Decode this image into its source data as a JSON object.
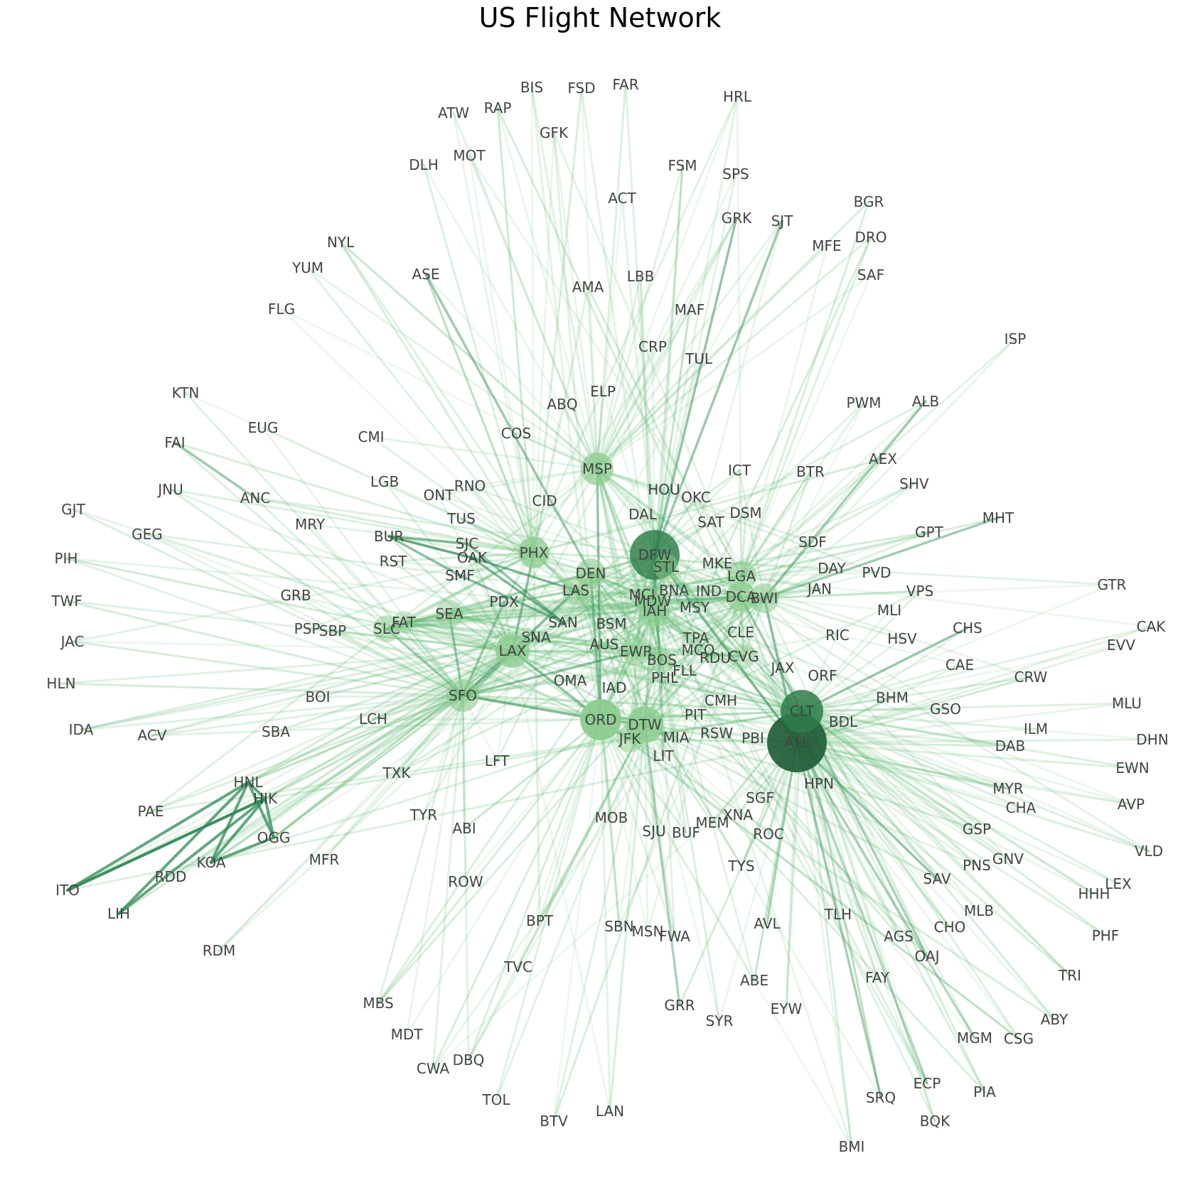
{
  "title": "US Flight Network",
  "colors": {
    "edge": "#5fb870",
    "edge_strong": "#2f8a55",
    "node": "#8ccc8e",
    "hub": "#2e7d4a",
    "hub_dark": "#1e5a35",
    "label": "#444444"
  },
  "hubs": [
    "ATL",
    "CLT",
    "DFW",
    "ORD",
    "DTW",
    "LAX",
    "SFO",
    "PHX",
    "MSP",
    "IAH",
    "MDW",
    "DEN",
    "LAS",
    "BWI",
    "DCA",
    "LGA",
    "SEA",
    "SLC",
    "JFK",
    "EWR",
    "BOS",
    "STL",
    "CVG",
    "FAT",
    "MCI"
  ],
  "airports": [
    "BIS",
    "FSD",
    "FAR",
    "ATW",
    "RAP",
    "HRL",
    "GFK",
    "DLH",
    "MOT",
    "FSM",
    "SPS",
    "ACT",
    "GRK",
    "SJT",
    "BGR",
    "NYL",
    "MFE",
    "DRO",
    "YUM",
    "ASE",
    "LBB",
    "SAF",
    "AMA",
    "FLG",
    "MAF",
    "ISP",
    "CRP",
    "TUL",
    "KTN",
    "ELP",
    "PWM",
    "ALB",
    "ABQ",
    "EUG",
    "CMI",
    "COS",
    "FAI",
    "AEX",
    "ICT",
    "BTR",
    "MSP",
    "SHV",
    "JNU",
    "ANC",
    "LGB",
    "HOU",
    "OKC",
    "GJT",
    "ONT",
    "RNO",
    "CID",
    "DAL",
    "DSM",
    "MHT",
    "MRY",
    "TUS",
    "SAT",
    "GEG",
    "BUR",
    "GPT",
    "SDF",
    "SJC",
    "PHX",
    "DFW",
    "PIH",
    "RST",
    "OAK",
    "MKE",
    "DAY",
    "PVD",
    "DEN",
    "STL",
    "MCI",
    "LGA",
    "SMF",
    "GTR",
    "LAS",
    "IND",
    "BNA",
    "JAN",
    "VPS",
    "GRB",
    "DCA",
    "BWI",
    "TWF",
    "MDW",
    "PDX",
    "MSY",
    "MLI",
    "IAH",
    "CAK",
    "SEA",
    "FAT",
    "SAN",
    "BSM",
    "PSP",
    "SBP",
    "SLC",
    "CHS",
    "JAC",
    "SNA",
    "CLE",
    "RIC",
    "HSV",
    "EVV",
    "TPA",
    "AUS",
    "EWR",
    "LAX",
    "MCO",
    "CVG",
    "BOS",
    "RDU",
    "CAE",
    "JAX",
    "HLN",
    "FLL",
    "PHL",
    "ORF",
    "CRW",
    "OMA",
    "IAD",
    "CMH",
    "BHM",
    "BOI",
    "SFO",
    "GSO",
    "MLU",
    "LCH",
    "PIT",
    "ORD",
    "DTW",
    "BDL",
    "IDA",
    "ACV",
    "SBA",
    "ILM",
    "RSW",
    "MIA",
    "DHN",
    "JFK",
    "PBI",
    "ATL",
    "DAB",
    "LIT",
    "LFT",
    "CLT",
    "EWN",
    "TXK",
    "HNL",
    "HPN",
    "MYR",
    "HIK",
    "PAE",
    "CHA",
    "AVP",
    "SGF",
    "TYR",
    "MOB",
    "XNA",
    "ABI",
    "MEM",
    "SJU",
    "BUF",
    "GSP",
    "OGG",
    "ROC",
    "MFR",
    "VLD",
    "KOA",
    "GNV",
    "PNS",
    "TYS",
    "RDD",
    "ROW",
    "SAV",
    "LEX",
    "ITO",
    "HHH",
    "MLB",
    "LIH",
    "TLH",
    "BPT",
    "AVL",
    "SBN",
    "MSN",
    "CHO",
    "FWA",
    "AGS",
    "PHF",
    "RDM",
    "OAJ",
    "TVC",
    "ABE",
    "TRI",
    "FAY",
    "MBS",
    "GRR",
    "EYW",
    "SYR",
    "ABY",
    "MDT",
    "MGM",
    "CSG",
    "DBQ",
    "CWA",
    "ECP",
    "PIA",
    "SRQ",
    "TOL",
    "LAN",
    "BTV",
    "BQK",
    "BMI"
  ]
}
